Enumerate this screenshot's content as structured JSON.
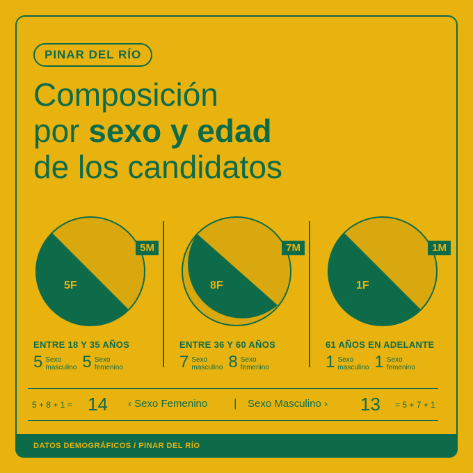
{
  "tag": "PINAR DEL RÍO",
  "title": {
    "line1": "Composición",
    "line2_pre": "por ",
    "line2_bold": "sexo y edad",
    "line3": "de los candidatos"
  },
  "groups": [
    {
      "range": "ENTRE 18 Y 35 AÑOS",
      "female_label": "5F",
      "male_label": "5M",
      "masc": "5",
      "fem": "5",
      "female": 5,
      "male": 5,
      "masc_label": [
        "Sexo",
        "masculino"
      ],
      "fem_label": [
        "Sexo",
        "femenino"
      ]
    },
    {
      "range": "ENTRE 36 Y 60 AÑOS",
      "female_label": "8F",
      "male_label": "7M",
      "masc": "7",
      "fem": "8",
      "female": 8,
      "male": 7,
      "masc_label": [
        "Sexo",
        "masculino"
      ],
      "fem_label": [
        "Sexo",
        "femenino"
      ]
    },
    {
      "range": "61 AÑOS EN ADELANTE",
      "female_label": "1F",
      "male_label": "1M",
      "masc": "1",
      "fem": "1",
      "female": 1,
      "male": 1,
      "masc_label": [
        "Sexo",
        "masculino"
      ],
      "fem_label": [
        "Sexo",
        "femenino"
      ]
    }
  ],
  "totals": {
    "fem_formula": "5 + 8 + 1 =",
    "fem_total": "14",
    "fem_label": "‹ Sexo Femenino",
    "divider": "|",
    "masc_label": "Sexo Masculino ›",
    "masc_total": "13",
    "masc_formula": "= 5 + 7 + 1"
  },
  "footer": "DATOS DEMOGRÁFICOS / PINAR DEL RÍO",
  "colors": {
    "background": "#E8B30E",
    "green": "#0E6B4A"
  }
}
